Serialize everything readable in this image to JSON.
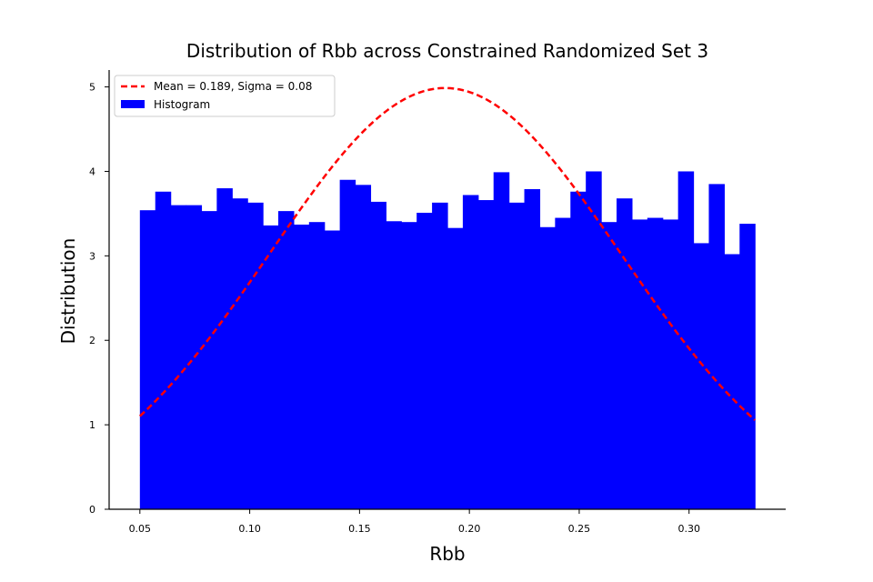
{
  "chart_data": {
    "type": "bar",
    "title": "Distribution of Rbb across Constrained Randomized Set 3",
    "xlabel": "Rbb",
    "ylabel": "Distribution",
    "xlim": [
      0.036,
      0.344
    ],
    "ylim": [
      0,
      5.2
    ],
    "xticks": [
      0.05,
      0.1,
      0.15,
      0.2,
      0.25,
      0.3
    ],
    "xtick_labels": [
      "0.05",
      "0.10",
      "0.15",
      "0.20",
      "0.25",
      "0.30"
    ],
    "yticks": [
      0,
      1,
      2,
      3,
      4,
      5
    ],
    "ytick_labels": [
      "0",
      "1",
      "2",
      "3",
      "4",
      "5"
    ],
    "grid": false,
    "legend_position": "top-left",
    "histogram": {
      "name": "Histogram",
      "color": "#0000ff",
      "bin_start": 0.05,
      "bin_end": 0.33,
      "values": [
        3.54,
        3.76,
        3.6,
        3.6,
        3.53,
        3.8,
        3.68,
        3.63,
        3.36,
        3.53,
        3.37,
        3.4,
        3.3,
        3.9,
        3.84,
        3.64,
        3.41,
        3.4,
        3.51,
        3.63,
        3.33,
        3.72,
        3.66,
        3.99,
        3.63,
        3.79,
        3.34,
        3.45,
        3.76,
        4.0,
        3.4,
        3.68,
        3.43,
        3.45,
        3.43,
        4.0,
        3.15,
        3.85,
        3.02,
        3.38
      ]
    },
    "fit": {
      "name": "Mean = 0.189, Sigma = 0.08",
      "color": "#ff0000",
      "line_style": "dashed",
      "mean": 0.189,
      "sigma": 0.08,
      "x_start": 0.05,
      "x_end": 0.33
    }
  }
}
